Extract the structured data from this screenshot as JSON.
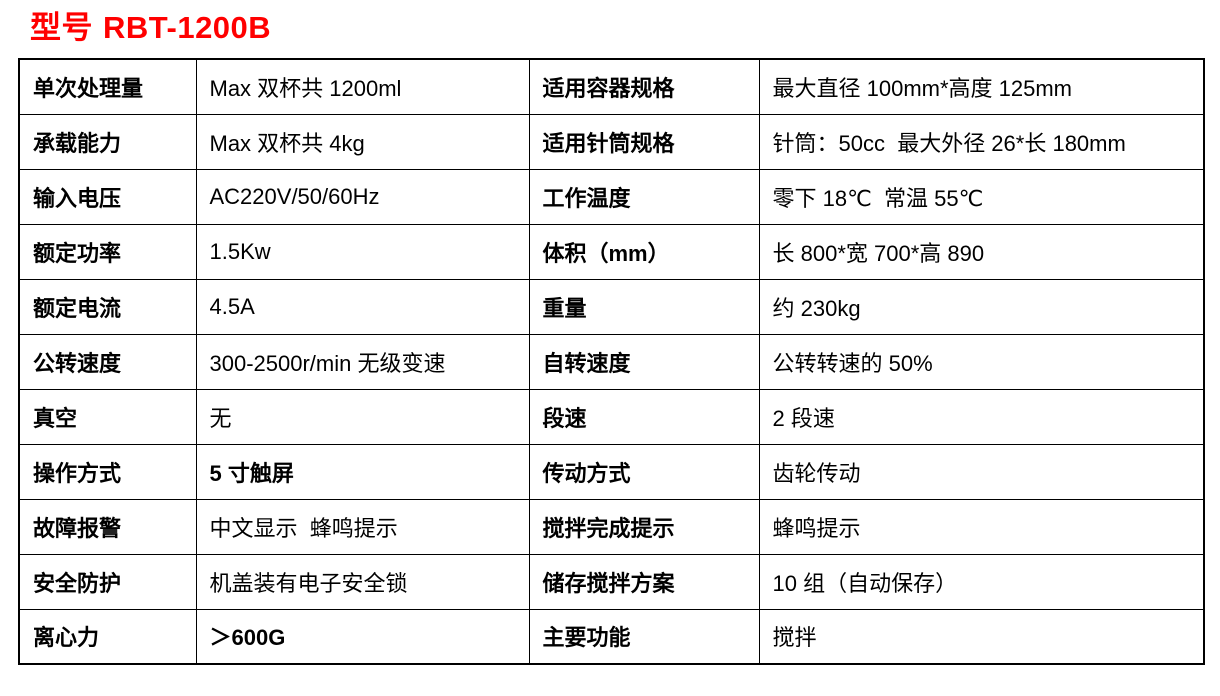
{
  "title": {
    "prefix": "型号",
    "model": "RBT-1200B"
  },
  "colors": {
    "title": "#ff0000",
    "border": "#000000",
    "text": "#000000",
    "background": "#ffffff"
  },
  "table": {
    "rows": [
      {
        "label1": "单次处理量",
        "value1": "Max 双杯共 1200ml",
        "label2": "适用容器规格",
        "value2": "最大直径 100mm*高度 125mm"
      },
      {
        "label1": "承载能力",
        "value1": "Max 双杯共 4kg",
        "label2": "适用针筒规格",
        "value2": "针筒：50cc  最大外径 26*长 180mm"
      },
      {
        "label1": "输入电压",
        "value1": "AC220V/50/60Hz",
        "label2": "工作温度",
        "value2": "零下 18℃  常温 55℃"
      },
      {
        "label1": "额定功率",
        "value1": "1.5Kw",
        "label2": "体积（mm）",
        "value2": "长 800*宽 700*高 890"
      },
      {
        "label1": "额定电流",
        "value1": "4.5A",
        "label2": "重量",
        "value2": "约 230kg"
      },
      {
        "label1": "公转速度",
        "value1": "300-2500r/min 无级变速",
        "label2": "自转速度",
        "value2": "公转转速的 50%"
      },
      {
        "label1": "真空",
        "value1": "无",
        "label2": "段速",
        "value2": "2 段速"
      },
      {
        "label1": "操作方式",
        "value1": "5 寸触屏",
        "value1_bold": true,
        "label2": "传动方式",
        "value2": "齿轮传动"
      },
      {
        "label1": "故障报警",
        "value1": "中文显示  蜂鸣提示",
        "label2": "搅拌完成提示",
        "value2": "蜂鸣提示"
      },
      {
        "label1": "安全防护",
        "value1": "机盖装有电子安全锁",
        "label2": "储存搅拌方案",
        "value2": "10 组（自动保存）"
      },
      {
        "label1": "离心力",
        "value1": "＞600G",
        "value1_bold": true,
        "label2": "主要功能",
        "value2": "搅拌"
      }
    ]
  }
}
